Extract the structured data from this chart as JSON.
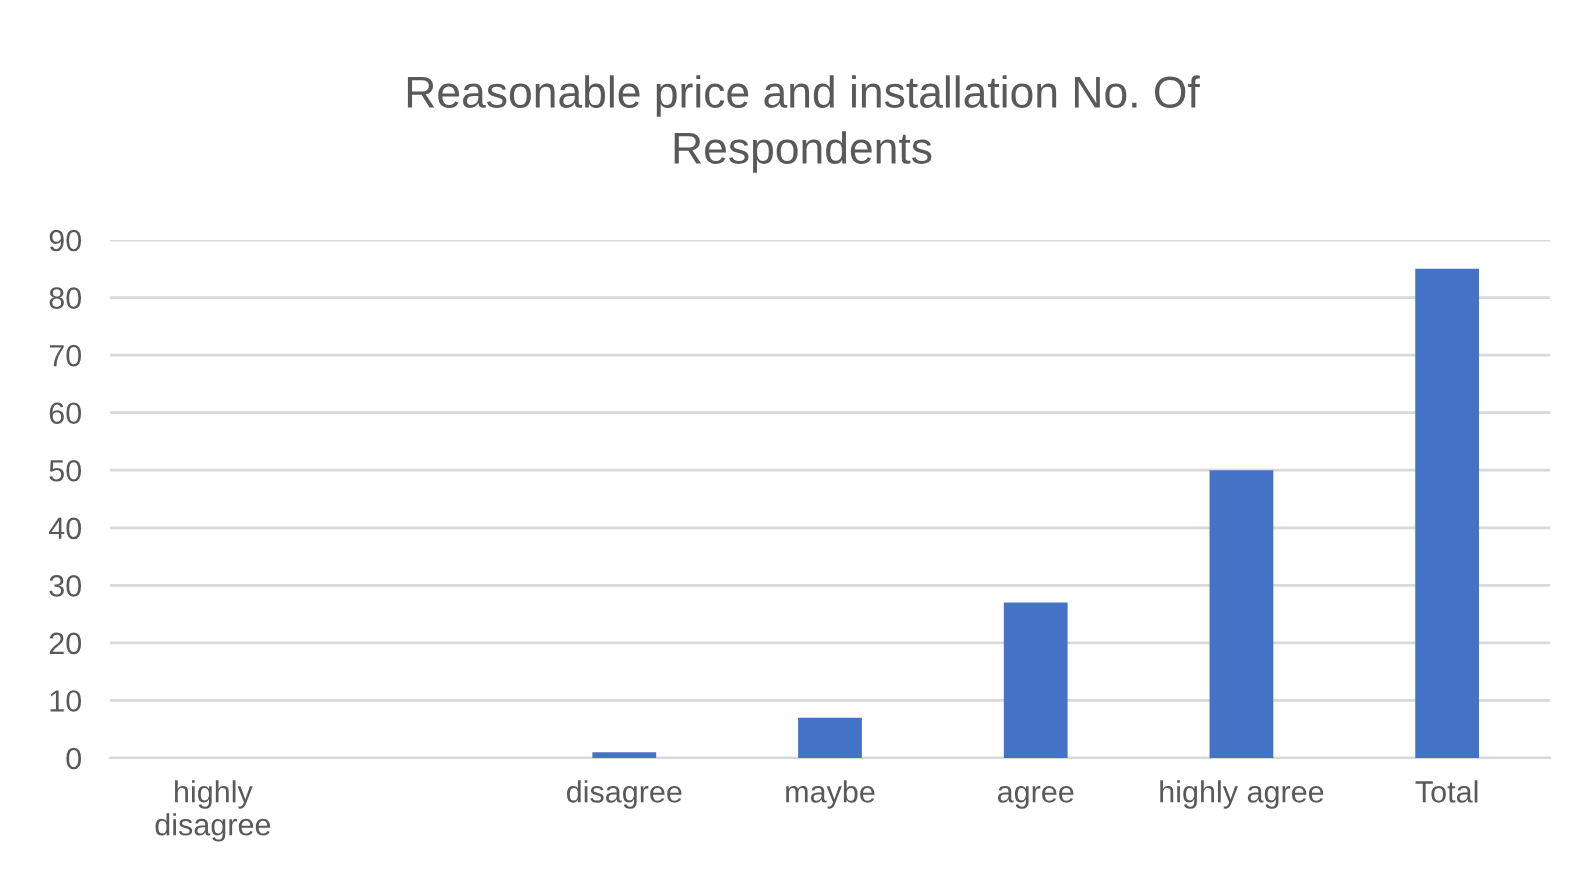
{
  "chart_data": {
    "type": "bar",
    "title": "Reasonable price and installation No. Of Respondents",
    "categories": [
      "highly disagree",
      null,
      "disagree",
      "maybe",
      "agree",
      "highly agree",
      "Total"
    ],
    "values": [
      null,
      null,
      1,
      7,
      27,
      50,
      85
    ],
    "color": "#4472c4",
    "ylim": [
      0,
      90
    ],
    "yticks": [
      0,
      10,
      20,
      30,
      40,
      50,
      60,
      70,
      80,
      90
    ],
    "grid": "y"
  }
}
